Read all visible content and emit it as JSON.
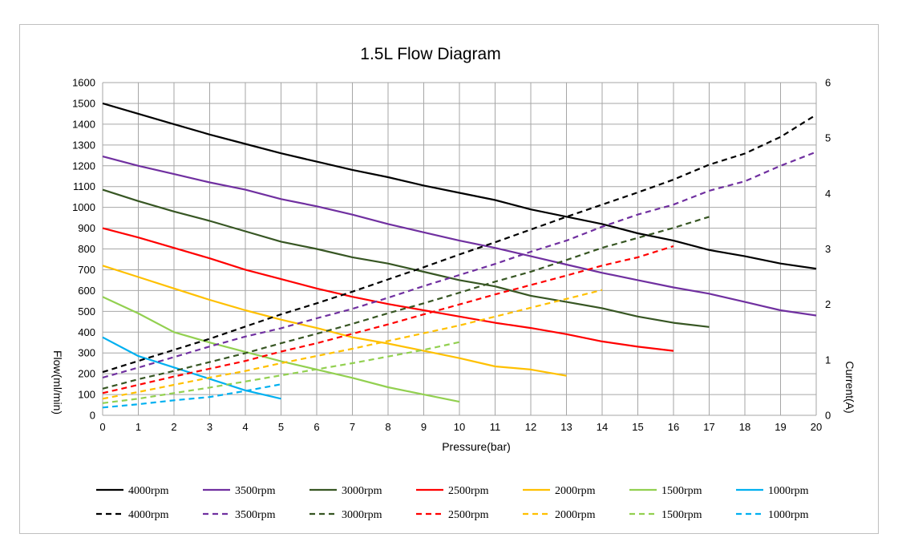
{
  "chart_data": {
    "type": "line",
    "title": "1.5L Flow Diagram",
    "xlabel": "Pressure(bar)",
    "ylabel": "Flow(ml/min)",
    "y2label": "Current(A)",
    "xlim": [
      0,
      20
    ],
    "ylim": [
      0,
      1600
    ],
    "y2lim": [
      0,
      6
    ],
    "x_ticks": [
      0,
      1,
      2,
      3,
      4,
      5,
      6,
      7,
      8,
      9,
      10,
      11,
      12,
      13,
      14,
      15,
      16,
      17,
      18,
      19,
      20
    ],
    "y_ticks": [
      0,
      100,
      200,
      300,
      400,
      500,
      600,
      700,
      800,
      900,
      1000,
      1100,
      1200,
      1300,
      1400,
      1500,
      1600
    ],
    "y2_ticks": [
      0,
      1,
      2,
      3,
      4,
      5,
      6
    ],
    "grid": true,
    "legend_position": "bottom",
    "flow_series": [
      {
        "name": "4000rpm",
        "color": "#000000",
        "x": [
          0,
          1,
          2,
          3,
          4,
          5,
          6,
          7,
          8,
          9,
          10,
          11,
          12,
          13,
          14,
          15,
          16,
          17,
          18,
          19,
          20
        ],
        "values": [
          1500,
          1450,
          1400,
          1350,
          1305,
          1260,
          1220,
          1180,
          1145,
          1105,
          1070,
          1035,
          990,
          955,
          920,
          875,
          840,
          795,
          765,
          730,
          705
        ]
      },
      {
        "name": "3500rpm",
        "color": "#7030A0",
        "x": [
          0,
          1,
          2,
          3,
          4,
          5,
          6,
          7,
          8,
          9,
          10,
          11,
          12,
          13,
          14,
          15,
          16,
          17,
          18,
          19,
          20
        ],
        "values": [
          1245,
          1200,
          1160,
          1120,
          1085,
          1040,
          1005,
          965,
          920,
          880,
          840,
          805,
          765,
          725,
          685,
          650,
          615,
          585,
          545,
          505,
          480
        ]
      },
      {
        "name": "3000rpm",
        "color": "#375623",
        "x": [
          0,
          1,
          2,
          3,
          4,
          5,
          6,
          7,
          8,
          9,
          10,
          11,
          12,
          13,
          14,
          15,
          16,
          17
        ],
        "values": [
          1085,
          1030,
          980,
          935,
          885,
          835,
          800,
          760,
          730,
          690,
          650,
          620,
          575,
          545,
          515,
          475,
          445,
          425
        ]
      },
      {
        "name": "2500rpm",
        "color": "#FF0000",
        "x": [
          0,
          1,
          2,
          3,
          4,
          5,
          6,
          7,
          8,
          9,
          10,
          11,
          12,
          13,
          14,
          15,
          16
        ],
        "values": [
          900,
          855,
          805,
          755,
          700,
          655,
          610,
          570,
          535,
          505,
          475,
          445,
          420,
          390,
          355,
          330,
          310
        ]
      },
      {
        "name": "2000rpm",
        "color": "#FFC000",
        "x": [
          0,
          1,
          2,
          3,
          4,
          5,
          6,
          7,
          8,
          9,
          10,
          11,
          12,
          13
        ],
        "values": [
          720,
          665,
          610,
          555,
          505,
          460,
          420,
          375,
          345,
          310,
          275,
          235,
          220,
          190
        ]
      },
      {
        "name": "1500rpm",
        "color": "#92D050",
        "x": [
          0,
          1,
          2,
          3,
          4,
          5,
          6,
          7,
          8,
          9,
          10
        ],
        "values": [
          570,
          490,
          400,
          350,
          305,
          260,
          220,
          180,
          135,
          100,
          65
        ]
      },
      {
        "name": "1000rpm",
        "color": "#00B0F0",
        "x": [
          0,
          1,
          2,
          3,
          4,
          5
        ],
        "values": [
          375,
          285,
          230,
          175,
          120,
          80
        ]
      }
    ],
    "current_series": [
      {
        "name": "4000rpm",
        "color": "#000000",
        "x": [
          0,
          1,
          2,
          3,
          4,
          5,
          6,
          7,
          8,
          9,
          10,
          11,
          12,
          13,
          14,
          15,
          16,
          17,
          18,
          19,
          20
        ],
        "values": [
          0.78,
          0.98,
          1.18,
          1.38,
          1.6,
          1.82,
          2.02,
          2.23,
          2.45,
          2.67,
          2.9,
          3.12,
          3.35,
          3.58,
          3.8,
          4.02,
          4.25,
          4.52,
          4.72,
          5.02,
          5.42
        ]
      },
      {
        "name": "3500rpm",
        "color": "#7030A0",
        "x": [
          0,
          1,
          2,
          3,
          4,
          5,
          6,
          7,
          8,
          9,
          10,
          11,
          12,
          13,
          14,
          15,
          16,
          17,
          18,
          19,
          20
        ],
        "values": [
          0.68,
          0.86,
          1.05,
          1.24,
          1.42,
          1.57,
          1.75,
          1.92,
          2.12,
          2.33,
          2.53,
          2.73,
          2.95,
          3.15,
          3.4,
          3.62,
          3.8,
          4.05,
          4.22,
          4.5,
          4.75
        ]
      },
      {
        "name": "3000rpm",
        "color": "#375623",
        "x": [
          0,
          1,
          2,
          3,
          4,
          5,
          6,
          7,
          8,
          9,
          10,
          11,
          12,
          13,
          14,
          15,
          16,
          17
        ],
        "values": [
          0.48,
          0.65,
          0.8,
          0.96,
          1.12,
          1.3,
          1.47,
          1.65,
          1.84,
          2.02,
          2.21,
          2.41,
          2.59,
          2.8,
          3.02,
          3.2,
          3.38,
          3.58
        ]
      },
      {
        "name": "2500rpm",
        "color": "#FF0000",
        "x": [
          0,
          1,
          2,
          3,
          4,
          5,
          6,
          7,
          8,
          9,
          10,
          11,
          12,
          13,
          14,
          15,
          16
        ],
        "values": [
          0.4,
          0.55,
          0.7,
          0.84,
          0.98,
          1.15,
          1.3,
          1.47,
          1.64,
          1.82,
          2,
          2.18,
          2.35,
          2.52,
          2.7,
          2.85,
          3.05
        ]
      },
      {
        "name": "2000rpm",
        "color": "#FFC000",
        "x": [
          0,
          1,
          2,
          3,
          4,
          5,
          6,
          7,
          8,
          9,
          10,
          11,
          12,
          13,
          14
        ],
        "values": [
          0.3,
          0.42,
          0.55,
          0.68,
          0.8,
          0.94,
          1.07,
          1.2,
          1.34,
          1.48,
          1.62,
          1.78,
          1.94,
          2.1,
          2.26
        ]
      },
      {
        "name": "1500rpm",
        "color": "#92D050",
        "x": [
          0,
          1,
          2,
          3,
          4,
          5,
          6,
          7,
          8,
          9,
          10
        ],
        "values": [
          0.22,
          0.3,
          0.4,
          0.5,
          0.61,
          0.72,
          0.83,
          0.94,
          1.06,
          1.18,
          1.32
        ]
      },
      {
        "name": "1000rpm",
        "color": "#00B0F0",
        "x": [
          0,
          1,
          2,
          3,
          4,
          5
        ],
        "values": [
          0.14,
          0.2,
          0.27,
          0.33,
          0.44,
          0.56
        ]
      }
    ]
  }
}
